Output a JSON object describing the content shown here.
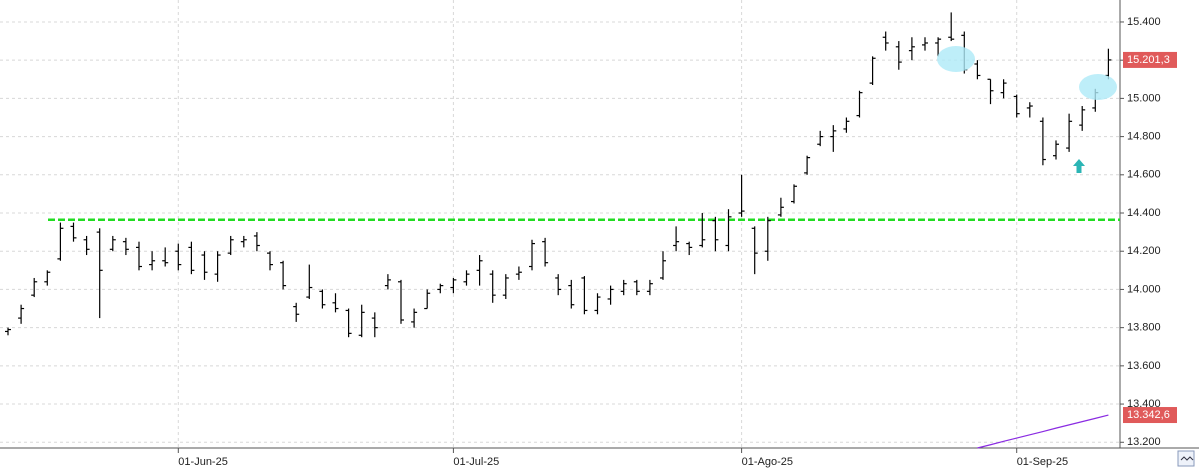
{
  "chart_data": {
    "type": "ohlc",
    "categories": [
      null,
      null,
      null,
      null,
      null,
      null,
      null,
      null,
      null,
      null,
      null,
      null,
      null,
      "01-Jun-25",
      null,
      null,
      null,
      null,
      null,
      null,
      null,
      null,
      null,
      null,
      null,
      null,
      null,
      null,
      null,
      null,
      null,
      null,
      null,
      null,
      "01-Jul-25",
      null,
      null,
      null,
      null,
      null,
      null,
      null,
      null,
      null,
      null,
      null,
      null,
      null,
      null,
      null,
      null,
      null,
      null,
      null,
      null,
      null,
      "01-Ago-25",
      null,
      null,
      null,
      null,
      null,
      null,
      null,
      null,
      null,
      null,
      null,
      null,
      null,
      null,
      null,
      null,
      null,
      null,
      null,
      null,
      "01-Sep-25",
      null,
      null,
      null,
      null,
      null,
      null,
      null
    ],
    "series": [
      {
        "color": "#000000",
        "last_label": "15.201,3",
        "label_color": "#e05a5a",
        "open": [
          13780,
          13850,
          13970,
          14040,
          14160,
          14330,
          14260,
          14300,
          14210,
          14250,
          14220,
          14130,
          14150,
          14200,
          14220,
          14180,
          14080,
          14190,
          14250,
          14280,
          14190,
          14140,
          13910,
          13960,
          13990,
          13930,
          13890,
          13760,
          13850,
          14020,
          14040,
          13830,
          13900,
          14000,
          14010,
          14040,
          14100,
          14080,
          13970,
          14080,
          14120,
          14250,
          14060,
          14020,
          14060,
          13890,
          13950,
          13990,
          14040,
          13990,
          14060,
          14230,
          14240,
          14230,
          14360,
          14230,
          14400,
          14320,
          14200,
          14390,
          14460,
          14610,
          14760,
          14800,
          14840,
          14910,
          15080,
          15320,
          15270,
          15250,
          15280,
          15290,
          15320,
          15330,
          15180,
          15100,
          15030,
          15010,
          14950,
          14880,
          14700,
          14740,
          14860,
          14950,
          15120
        ],
        "high": [
          13800,
          13920,
          14060,
          14100,
          14350,
          14350,
          14280,
          14320,
          14280,
          14270,
          14250,
          14200,
          14220,
          14240,
          14250,
          14200,
          14200,
          14280,
          14280,
          14300,
          14200,
          14150,
          13930,
          14130,
          14000,
          13980,
          13900,
          13920,
          13880,
          14080,
          14050,
          13900,
          14000,
          14030,
          14060,
          14100,
          14180,
          14100,
          14080,
          14120,
          14260,
          14270,
          14080,
          14050,
          14070,
          13980,
          14020,
          14050,
          14050,
          14050,
          14200,
          14330,
          14250,
          14400,
          14380,
          14420,
          14600,
          14330,
          14380,
          14480,
          14550,
          14700,
          14830,
          14860,
          14900,
          15040,
          15220,
          15350,
          15300,
          15320,
          15320,
          15320,
          15450,
          15350,
          15200,
          15100,
          15100,
          15020,
          14980,
          14900,
          14780,
          14920,
          14960,
          15050,
          15260
        ],
        "low": [
          13760,
          13820,
          13960,
          14020,
          14150,
          14250,
          14180,
          13850,
          14200,
          14180,
          14100,
          14100,
          14120,
          14100,
          14080,
          14050,
          14040,
          14180,
          14220,
          14200,
          14100,
          14000,
          13830,
          13950,
          13900,
          13880,
          13750,
          13750,
          13750,
          14000,
          13820,
          13800,
          13900,
          13980,
          13980,
          14020,
          14020,
          13930,
          13950,
          14050,
          14100,
          14120,
          13970,
          13900,
          13870,
          13870,
          13920,
          13970,
          13970,
          13970,
          14050,
          14200,
          14180,
          14220,
          14200,
          14200,
          14380,
          14080,
          14150,
          14380,
          14450,
          14600,
          14750,
          14720,
          14820,
          14900,
          15070,
          15250,
          15150,
          15200,
          15250,
          15220,
          15300,
          15130,
          15100,
          14970,
          15000,
          14900,
          14900,
          14650,
          14680,
          14720,
          14830,
          14930,
          15100
        ],
        "close": [
          13790,
          13900,
          14040,
          14090,
          14320,
          14270,
          14210,
          14100,
          14260,
          14210,
          14120,
          14150,
          14140,
          14130,
          14100,
          14090,
          14180,
          14260,
          14260,
          14230,
          14130,
          14020,
          13870,
          14010,
          13920,
          13900,
          13770,
          13880,
          13800,
          14050,
          13840,
          13880,
          13980,
          14020,
          14050,
          14080,
          14150,
          13970,
          14060,
          14090,
          14240,
          14140,
          14000,
          13920,
          13890,
          13960,
          14000,
          14030,
          13990,
          14030,
          14150,
          14250,
          14220,
          14260,
          14260,
          14380,
          14410,
          14190,
          14360,
          14430,
          14540,
          14690,
          14800,
          14830,
          14880,
          15030,
          15210,
          15290,
          15190,
          15270,
          15290,
          15310,
          15310,
          15150,
          15120,
          15040,
          15080,
          14920,
          14960,
          14680,
          14760,
          14880,
          14940,
          15030,
          15201.3
        ]
      },
      {
        "type": "line",
        "color": "#8a2be2",
        "last_label": "13.342,6",
        "label_color": "#e05a5a",
        "values": [
          null,
          null,
          null,
          null,
          null,
          null,
          null,
          null,
          null,
          null,
          null,
          null,
          null,
          null,
          null,
          null,
          null,
          null,
          null,
          null,
          null,
          null,
          null,
          null,
          null,
          null,
          null,
          null,
          null,
          null,
          null,
          null,
          null,
          null,
          null,
          null,
          null,
          null,
          null,
          null,
          null,
          null,
          null,
          null,
          null,
          null,
          null,
          null,
          null,
          null,
          null,
          null,
          null,
          null,
          null,
          null,
          null,
          null,
          null,
          null,
          null,
          null,
          null,
          null,
          null,
          null,
          null,
          null,
          null,
          null,
          null,
          null,
          null,
          null,
          13170,
          13187,
          13205,
          13222,
          13239,
          13256,
          13274,
          13291,
          13308,
          13325,
          13342.6
        ]
      }
    ],
    "hlines": [
      {
        "value": 14365,
        "color": "#22dd22"
      }
    ],
    "ylim": [
      13170,
      15515
    ],
    "yticks": [
      {
        "value": 13200,
        "label": "13.200"
      },
      {
        "value": 13400,
        "label": "13.400"
      },
      {
        "value": 13600,
        "label": "13.600"
      },
      {
        "value": 13800,
        "label": "13.800"
      },
      {
        "value": 14000,
        "label": "14.000"
      },
      {
        "value": 14200,
        "label": "14.200"
      },
      {
        "value": 14400,
        "label": "14.400"
      },
      {
        "value": 14600,
        "label": "14.600"
      },
      {
        "value": 14800,
        "label": "14.800"
      },
      {
        "value": 15000,
        "label": "15.000"
      },
      {
        "value": 15200,
        "label": "15.200"
      },
      {
        "value": 15400,
        "label": "15.400"
      }
    ],
    "grid": true
  }
}
